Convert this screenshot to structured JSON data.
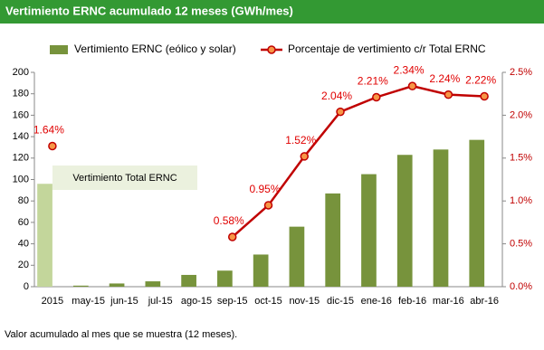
{
  "chart_data": {
    "type": "bar-line",
    "title": "Vertimiento ERNC acumulado 12 meses (GWh/mes)",
    "categories": [
      "2015",
      "may-15",
      "jun-15",
      "jul-15",
      "ago-15",
      "sep-15",
      "oct-15",
      "nov-15",
      "dic-15",
      "ene-16",
      "feb-16",
      "mar-16",
      "abr-16"
    ],
    "series": [
      {
        "name": "Vertimiento ERNC (eólico y solar)",
        "color": "#77933c",
        "bar_colors": [
          "#c3d69b",
          "#77933c",
          "#77933c",
          "#77933c",
          "#77933c",
          "#77933c",
          "#77933c",
          "#77933c",
          "#77933c",
          "#77933c",
          "#77933c",
          "#77933c",
          "#77933c"
        ],
        "values": [
          96,
          1,
          3,
          5,
          11,
          15,
          30,
          56,
          87,
          105,
          123,
          128,
          137
        ]
      },
      {
        "name": "Porcentaje de vertimiento c/r Total ERNC",
        "color": "#c00000",
        "marker_color": "#f79646",
        "axis": "y2",
        "values": [
          1.64,
          null,
          null,
          null,
          null,
          0.58,
          0.95,
          1.52,
          2.04,
          2.21,
          2.34,
          2.24,
          2.22
        ],
        "value_labels": [
          "1.64%",
          null,
          null,
          null,
          null,
          "0.58%",
          "0.95%",
          "1.52%",
          "2.04%",
          "2.21%",
          "2.34%",
          "2.24%",
          "2.22%"
        ]
      }
    ],
    "ylim": [
      0,
      200
    ],
    "yticks": [
      0,
      20,
      40,
      60,
      80,
      100,
      120,
      140,
      160,
      180,
      200
    ],
    "y2lim": [
      0,
      2.5
    ],
    "y2ticks": [
      {
        "value": 0,
        "label": "0.0%"
      },
      {
        "value": 0.5,
        "label": "0.5%"
      },
      {
        "value": 1,
        "label": "1.0%"
      },
      {
        "value": 1.5,
        "label": "1.5%"
      },
      {
        "value": 2,
        "label": "2.0%"
      },
      {
        "value": 2.5,
        "label": "2.5%"
      }
    ],
    "annotation": "Vertimiento Total ERNC",
    "footnote": "Valor acumulado al mes que se muestra (12 meses).",
    "title_color": "#339933"
  }
}
